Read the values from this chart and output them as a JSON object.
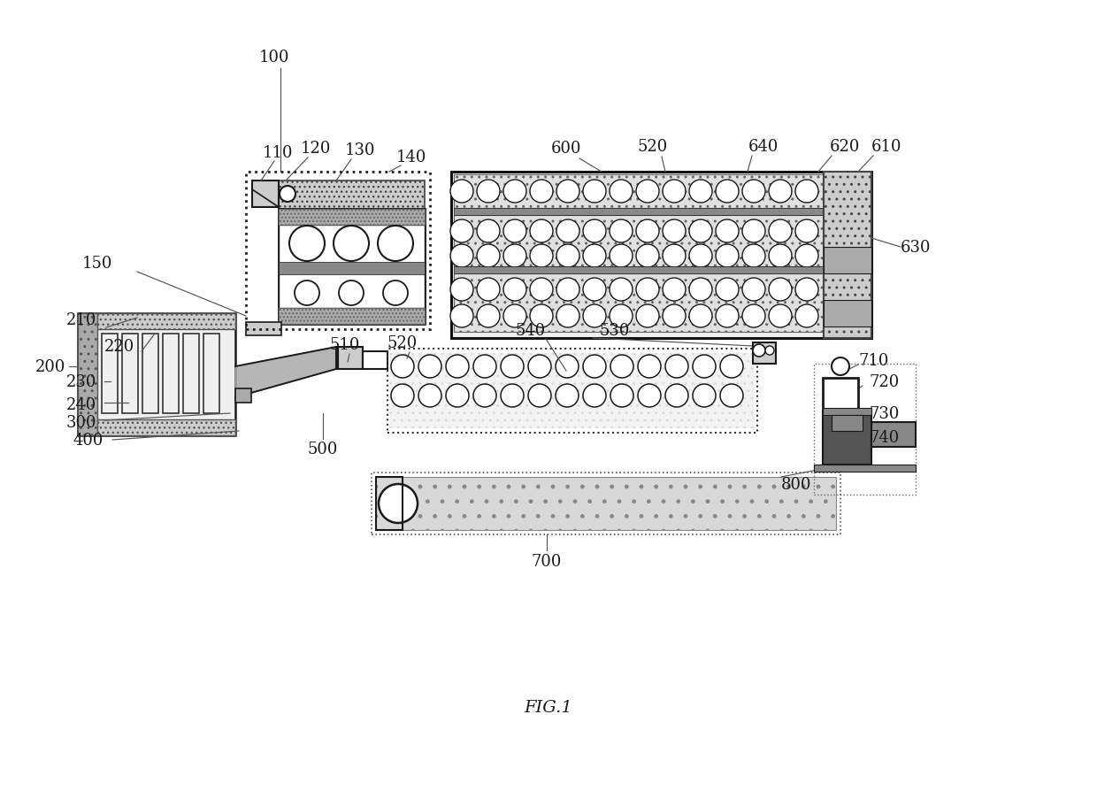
{
  "bg_color": "#ffffff",
  "lc": "#1a1a1a",
  "gray1": "#cccccc",
  "gray2": "#aaaaaa",
  "gray3": "#888888",
  "gray4": "#555555",
  "light": "#f0f0f0",
  "fig_caption": "FIG.1"
}
